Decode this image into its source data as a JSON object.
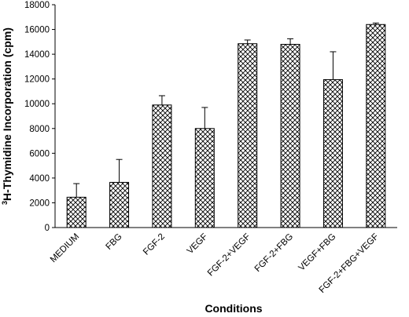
{
  "chart_data": {
    "type": "bar",
    "title": "",
    "xlabel": "Conditions",
    "ylabel_sup": "3",
    "ylabel_main": "H-Thymidine Incorporation (cpm)",
    "ylim": [
      0,
      18000
    ],
    "yticks": [
      "0",
      "2000",
      "4000",
      "6000",
      "8000",
      "10000",
      "12000",
      "14000",
      "16000",
      "18000"
    ],
    "categories": [
      "MEDIUM",
      "FBG",
      "FGF-2",
      "VEGF",
      "FGF-2+VEGF",
      "FGF-2+FBG",
      "VEGF+FBG",
      "FGF-2+FBG+VEGF"
    ],
    "values": [
      2450,
      3650,
      9900,
      8000,
      14850,
      14800,
      11950,
      16400
    ],
    "errors": [
      1100,
      1850,
      750,
      1700,
      300,
      450,
      2250,
      120
    ],
    "grid": false,
    "legend": "none",
    "bar_fill": "crosshatch",
    "colors": {
      "bar_stroke": "#000000",
      "hatch": "#000000",
      "background": "#ffffff"
    }
  }
}
